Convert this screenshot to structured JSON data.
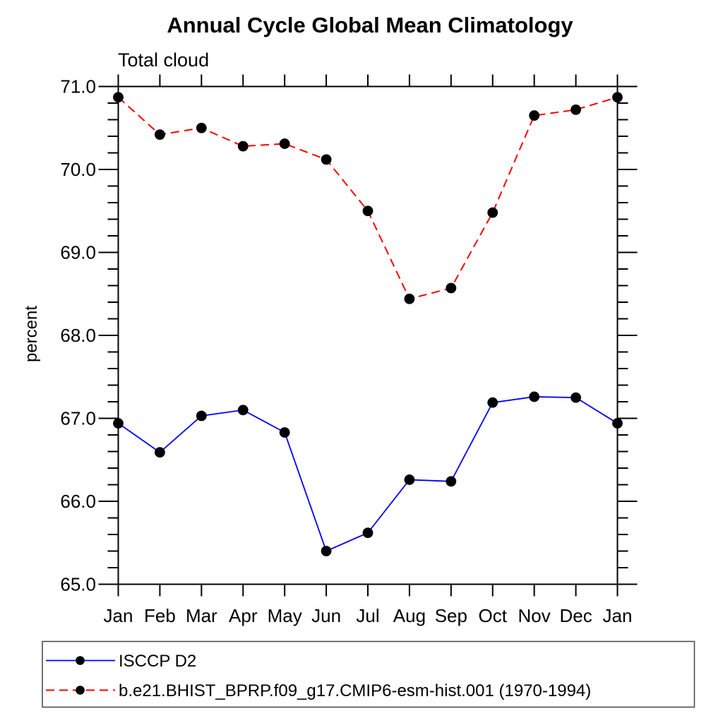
{
  "page": {
    "background_color": "#ffffff",
    "text_color": "#000000"
  },
  "chart_data": {
    "type": "line",
    "title": "Annual Cycle Global Mean Climatology",
    "subtitle": "Total cloud",
    "xlabel": "",
    "ylabel": "percent",
    "categories": [
      "Jan",
      "Feb",
      "Mar",
      "Apr",
      "May",
      "Jun",
      "Jul",
      "Aug",
      "Sep",
      "Oct",
      "Nov",
      "Dec",
      "Jan"
    ],
    "series": [
      {
        "name": "ISCCP D2",
        "color": "#0000ff",
        "line_style": "solid",
        "line_width": 1.8,
        "marker": "filled-circle",
        "marker_color": "#000000",
        "values": [
          66.94,
          66.59,
          67.03,
          67.1,
          66.83,
          65.4,
          65.62,
          66.26,
          66.24,
          67.19,
          67.26,
          67.25,
          66.94
        ]
      },
      {
        "name": "b.e21.BHIST_BPRP.f09_g17.CMIP6-esm-hist.001 (1970-1994)",
        "color": "#ff0000",
        "line_style": "dashed",
        "line_width": 2,
        "marker": "filled-circle",
        "marker_color": "#000000",
        "values": [
          70.87,
          70.42,
          70.5,
          70.28,
          70.31,
          70.12,
          69.5,
          68.44,
          68.57,
          69.48,
          70.65,
          70.72,
          70.87
        ]
      }
    ],
    "ylim": [
      65.0,
      71.0
    ],
    "ytick_values": [
      65,
      66,
      67,
      68,
      69,
      70,
      71
    ],
    "ytick_labels": [
      "65.0",
      "66.0",
      "67.0",
      "68.0",
      "69.0",
      "70.0",
      "71.0"
    ],
    "ytick_minor_step": 0.2,
    "grid": false,
    "frame_color": "#000000",
    "legend_position": "bottom-left"
  }
}
